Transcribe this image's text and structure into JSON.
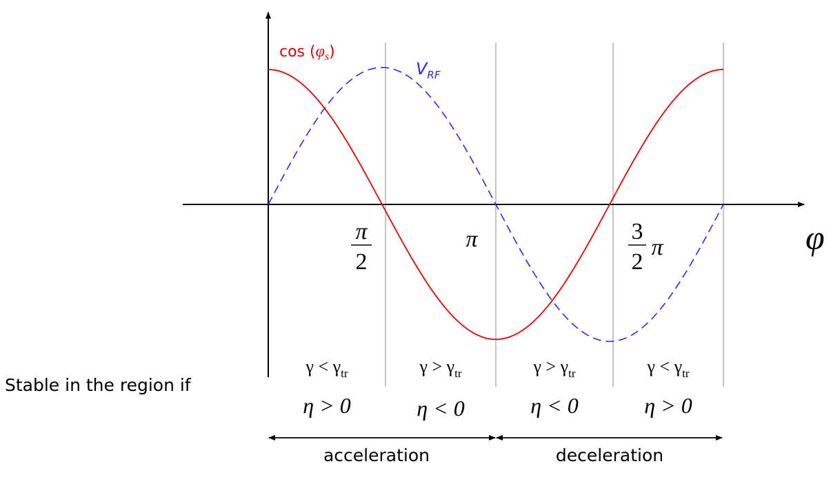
{
  "labels": {
    "cos_label_prefix": "cos (",
    "cos_label_phi": "φ",
    "cos_label_sub": "s",
    "cos_label_suffix": ")",
    "vrf_label_main": "V",
    "vrf_label_sub": "RF",
    "x_axis_symbol": "φ",
    "stable_text": "Stable in the region if"
  },
  "ticks": {
    "pi_half_num": "π",
    "pi_half_den": "2",
    "pi": "π",
    "three_half_num": "3",
    "three_half_den": "2",
    "three_half_pi": "π"
  },
  "regions": [
    {
      "gamma": "γ < γ",
      "gamma_sub": "tr",
      "eta": "η > 0"
    },
    {
      "gamma": "γ > γ",
      "gamma_sub": "tr",
      "eta": "η < 0"
    },
    {
      "gamma": "γ > γ",
      "gamma_sub": "tr",
      "eta": "η < 0"
    },
    {
      "gamma": "γ < γ",
      "gamma_sub": "tr",
      "eta": "η > 0"
    }
  ],
  "arrows": {
    "left_label": "acceleration",
    "right_label": "deceleration"
  },
  "colors": {
    "cos_curve": "#e00000",
    "vrf_curve": "#2a2af0",
    "axis": "#000000",
    "gridline": "#b4b4b4"
  }
}
